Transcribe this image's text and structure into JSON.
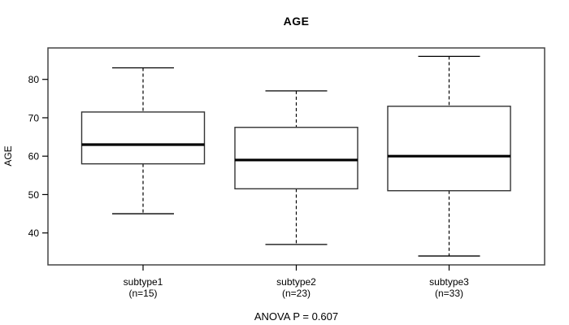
{
  "page": {
    "background": "#ffffff"
  },
  "chart_data": {
    "type": "boxplot",
    "title": "AGE",
    "ylabel": "AGE",
    "xlabel": "",
    "yticks": [
      40,
      50,
      60,
      70,
      80
    ],
    "ylim": [
      32,
      88
    ],
    "grid": false,
    "legend": "none",
    "annotation": "ANOVA P = 0.607",
    "categories": [
      "subtype1",
      "subtype2",
      "subtype3"
    ],
    "groups": [
      {
        "label": "subtype1",
        "count_label": "(n=15)",
        "n": 15,
        "whisker_low": 45,
        "q1": 58,
        "median": 63,
        "q3": 71.5,
        "whisker_high": 83
      },
      {
        "label": "subtype2",
        "count_label": "(n=23)",
        "n": 23,
        "whisker_low": 37,
        "q1": 51.5,
        "median": 59,
        "q3": 67.5,
        "whisker_high": 77
      },
      {
        "label": "subtype3",
        "count_label": "(n=33)",
        "n": 33,
        "whisker_low": 34,
        "q1": 51,
        "median": 60,
        "q3": 73,
        "whisker_high": 86
      }
    ],
    "colors": {
      "frame": "#444444",
      "box_stroke": "#333333",
      "median": "#000000",
      "whisker": "#000000",
      "text": "#000000",
      "background": "#ffffff"
    }
  }
}
